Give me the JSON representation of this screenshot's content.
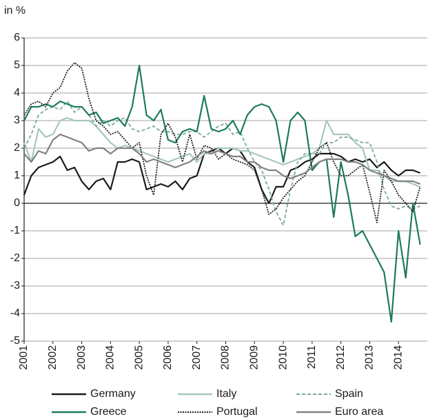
{
  "chart_data": {
    "type": "line",
    "ylabel": "in %",
    "xlim": [
      2001,
      2015
    ],
    "xticks": [
      2001,
      2002,
      2003,
      2004,
      2005,
      2006,
      2007,
      2008,
      2009,
      2010,
      2011,
      2012,
      2013,
      2014
    ],
    "ylim": [
      -5,
      6
    ],
    "yticks": [
      -5,
      -4,
      -3,
      -2,
      -1,
      0,
      1,
      2,
      3,
      4,
      5,
      6
    ],
    "grid": true,
    "legend": "bottom",
    "x": [
      2001,
      2001.25,
      2001.5,
      2001.75,
      2002,
      2002.25,
      2002.5,
      2002.75,
      2003,
      2003.25,
      2003.5,
      2003.75,
      2004,
      2004.25,
      2004.5,
      2004.75,
      2005,
      2005.25,
      2005.5,
      2005.75,
      2006,
      2006.25,
      2006.5,
      2006.75,
      2007,
      2007.25,
      2007.5,
      2007.75,
      2008,
      2008.25,
      2008.5,
      2008.75,
      2009,
      2009.25,
      2009.5,
      2009.75,
      2010,
      2010.25,
      2010.5,
      2010.75,
      2011,
      2011.25,
      2011.5,
      2011.75,
      2012,
      2012.25,
      2012.5,
      2012.75,
      2013,
      2013.25,
      2013.5,
      2013.75,
      2014,
      2014.25,
      2014.5,
      2014.75
    ],
    "series": [
      {
        "name": "Germany",
        "color": "#1a1a1a",
        "dash": "solid",
        "values": [
          0.3,
          1.0,
          1.3,
          1.4,
          1.5,
          1.7,
          1.2,
          1.3,
          0.8,
          0.5,
          0.8,
          0.9,
          0.5,
          1.5,
          1.5,
          1.6,
          1.5,
          0.5,
          0.6,
          0.7,
          0.6,
          0.8,
          0.5,
          0.9,
          1.0,
          1.8,
          1.9,
          2.0,
          1.8,
          2.0,
          1.9,
          1.5,
          1.3,
          0.5,
          0.0,
          0.6,
          0.6,
          1.2,
          1.3,
          1.5,
          1.6,
          1.8,
          1.8,
          1.8,
          1.7,
          1.5,
          1.6,
          1.5,
          1.6,
          1.3,
          1.5,
          1.2,
          1.0,
          1.2,
          1.2,
          1.1
        ]
      },
      {
        "name": "Italy",
        "color": "#a6c8b6",
        "dash": "solid",
        "values": [
          2.2,
          1.5,
          2.7,
          2.4,
          2.5,
          3.0,
          3.1,
          3.0,
          3.0,
          3.0,
          2.8,
          2.5,
          2.2,
          2.0,
          2.1,
          2.0,
          1.9,
          1.8,
          1.7,
          1.6,
          1.5,
          1.6,
          1.7,
          1.8,
          1.5,
          1.8,
          1.8,
          2.0,
          2.0,
          2.0,
          1.9,
          1.9,
          1.8,
          1.7,
          1.6,
          1.5,
          1.4,
          1.5,
          1.6,
          1.7,
          1.8,
          2.0,
          3.0,
          2.5,
          2.5,
          2.5,
          2.2,
          2.0,
          1.2,
          1.2,
          1.0,
          0.8,
          0.8,
          0.8,
          0.7,
          0.6
        ]
      },
      {
        "name": "Spain",
        "color": "#79ab92",
        "dash": "dashed",
        "values": [
          2.0,
          2.5,
          3.2,
          3.4,
          3.5,
          3.4,
          3.7,
          3.3,
          3.5,
          3.2,
          2.8,
          3.0,
          2.8,
          3.0,
          3.1,
          2.7,
          2.6,
          2.7,
          2.8,
          2.6,
          2.6,
          2.5,
          2.5,
          2.6,
          2.6,
          2.4,
          2.6,
          2.8,
          2.9,
          2.5,
          2.6,
          2.0,
          1.5,
          1.2,
          0.5,
          -0.3,
          -0.8,
          0.5,
          1.5,
          1.8,
          1.8,
          1.8,
          2.2,
          2.2,
          2.4,
          2.4,
          2.3,
          2.2,
          2.2,
          1.5,
          0.5,
          -0.1,
          -0.2,
          -0.1,
          -0.2,
          -0.1
        ]
      },
      {
        "name": "Greece",
        "color": "#1b7a5c",
        "dash": "solid",
        "values": [
          3.0,
          3.5,
          3.5,
          3.6,
          3.5,
          3.7,
          3.6,
          3.5,
          3.5,
          3.2,
          3.3,
          2.9,
          3.0,
          3.1,
          2.8,
          3.5,
          5.0,
          3.2,
          3.0,
          3.4,
          2.3,
          2.2,
          2.6,
          2.7,
          2.6,
          3.9,
          2.7,
          2.6,
          2.7,
          3.0,
          2.5,
          3.2,
          3.5,
          3.6,
          3.5,
          3.0,
          1.5,
          3.0,
          3.3,
          3.0,
          1.2,
          1.5,
          1.6,
          -0.5,
          1.5,
          0.3,
          -1.2,
          -1.0,
          -1.5,
          -2.0,
          -2.5,
          -4.3,
          -1.0,
          -2.7,
          0.0,
          -1.5
        ]
      },
      {
        "name": "Portugal",
        "color": "#1a1a1a",
        "dash": "dotted",
        "values": [
          3.2,
          3.6,
          3.7,
          3.5,
          4.0,
          4.2,
          4.8,
          5.1,
          4.9,
          3.8,
          3.0,
          2.8,
          2.5,
          2.6,
          2.3,
          2.0,
          2.2,
          1.0,
          0.3,
          2.5,
          2.9,
          2.4,
          1.5,
          2.5,
          1.6,
          2.1,
          2.0,
          1.6,
          1.8,
          1.6,
          1.5,
          1.4,
          1.2,
          0.5,
          -0.4,
          -0.2,
          0.2,
          0.5,
          0.8,
          1.0,
          1.5,
          2.0,
          2.2,
          1.5,
          1.0,
          1.0,
          1.2,
          1.4,
          0.4,
          -0.7,
          1.2,
          0.8,
          0.3,
          0.0,
          -0.3,
          0.6
        ]
      },
      {
        "name": "Euro area",
        "color": "#808080",
        "dash": "solid",
        "values": [
          1.8,
          1.5,
          1.9,
          1.8,
          2.3,
          2.5,
          2.4,
          2.3,
          2.2,
          1.9,
          2.0,
          2.0,
          1.8,
          2.0,
          2.0,
          2.0,
          1.8,
          1.5,
          1.6,
          1.5,
          1.4,
          1.3,
          1.4,
          1.5,
          1.7,
          1.9,
          1.8,
          1.9,
          1.8,
          1.7,
          1.7,
          1.5,
          1.5,
          1.3,
          1.2,
          1.2,
          1.0,
          0.9,
          1.0,
          1.1,
          1.3,
          1.5,
          1.6,
          1.6,
          1.6,
          1.5,
          1.5,
          1.4,
          1.2,
          1.1,
          1.0,
          0.9,
          0.8,
          0.8,
          0.8,
          0.7
        ]
      }
    ]
  }
}
